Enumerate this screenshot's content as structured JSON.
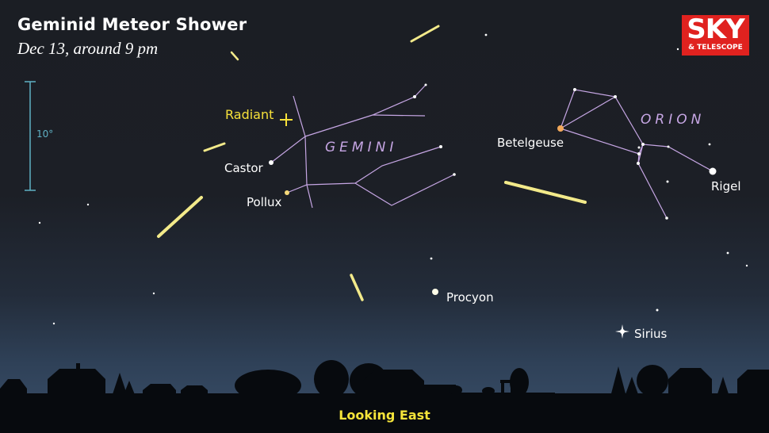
{
  "title": "Geminid Meteor Shower",
  "subtitle": "Dec 13, around 9 pm",
  "scale_label": "10°",
  "radiant_label": "Radiant",
  "constellations": {
    "gemini": "GEMINI",
    "orion": "ORION"
  },
  "stars": {
    "castor": "Castor",
    "pollux": "Pollux",
    "betelgeuse": "Betelgeuse",
    "rigel": "Rigel",
    "procyon": "Procyon",
    "sirius": "Sirius"
  },
  "direction": "Looking East",
  "logo": {
    "main": "SKY",
    "sub": "& TELESCOPE"
  },
  "colors": {
    "constellation_lines": "#c6a6e4",
    "meteor": "#f3ea8a",
    "radiant": "#f7e13a",
    "scale_bar": "#5fb0c4",
    "footer": "#f5e43a",
    "logo_bg": "#e0221f"
  }
}
